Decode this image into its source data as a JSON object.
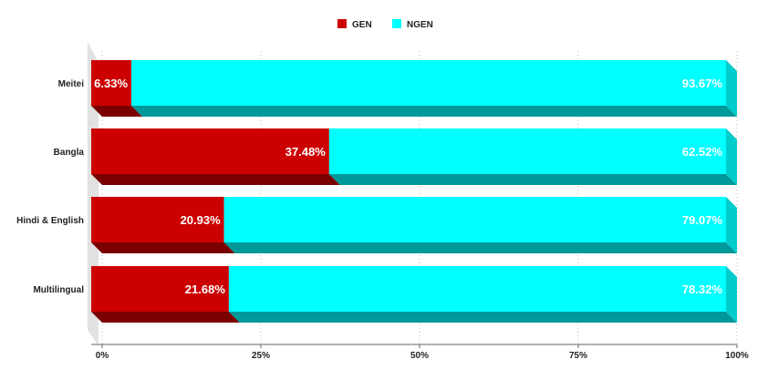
{
  "chart_data": {
    "type": "bar",
    "orientation": "horizontal",
    "stacked": "percent",
    "style": "3d",
    "categories": [
      "Meitei",
      "Bangla",
      "Hindi & English",
      "Multilingual"
    ],
    "series": [
      {
        "name": "GEN",
        "color": "#cc0000",
        "values": [
          6.33,
          37.48,
          20.93,
          21.68
        ],
        "labels": [
          "6.33%",
          "37.48%",
          "20.93%",
          "21.68%"
        ]
      },
      {
        "name": "NGEN",
        "color": "#00ffff",
        "values": [
          93.67,
          62.52,
          79.07,
          78.32
        ],
        "labels": [
          "93.67%",
          "62.52%",
          "79.07%",
          "78.32%"
        ]
      }
    ],
    "x_ticks": [
      "0%",
      "25%",
      "50%",
      "75%",
      "100%"
    ],
    "xlim": [
      0,
      100
    ],
    "grid": "vertical-dotted",
    "legend_position": "top-center"
  }
}
